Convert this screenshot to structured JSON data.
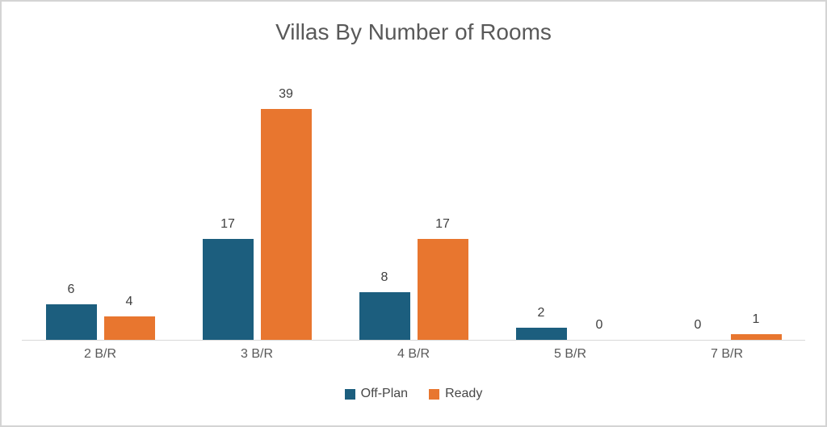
{
  "chart_data": {
    "type": "bar",
    "title": "Villas By Number of Rooms",
    "categories": [
      "2 B/R",
      "3 B/R",
      "4 B/R",
      "5 B/R",
      "7 B/R"
    ],
    "series": [
      {
        "name": "Off-Plan",
        "color": "#1C5E7E",
        "values": [
          6,
          17,
          8,
          2,
          0
        ]
      },
      {
        "name": "Ready",
        "color": "#E8762F",
        "values": [
          4,
          39,
          17,
          0,
          1
        ]
      }
    ],
    "xlabel": "",
    "ylabel": "",
    "ylim": [
      0,
      45
    ],
    "grid": false,
    "y_axis_visible": false,
    "legend_position": "bottom",
    "data_labels": true,
    "axis_line_color": "#D9D9D9",
    "title_color": "#595959",
    "label_color": "#404040"
  }
}
